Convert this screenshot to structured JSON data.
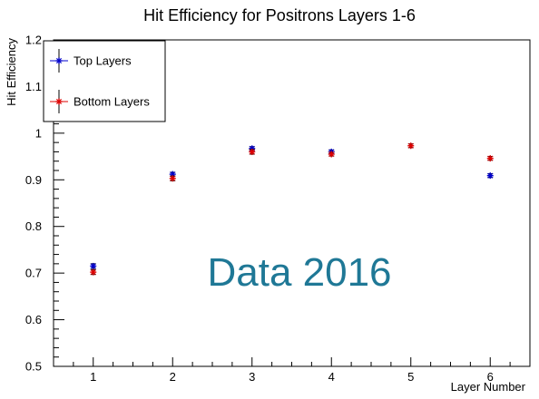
{
  "chart_data": {
    "type": "scatter",
    "title": "Hit Efficiency for Positrons Layers 1-6",
    "xlabel": "Layer Number",
    "ylabel": "Hit Efficiency",
    "xlim": [
      0.5,
      6.5
    ],
    "ylim": [
      0.5,
      1.2
    ],
    "x_ticks": [
      "1",
      "2",
      "3",
      "4",
      "5",
      "6"
    ],
    "y_ticks": [
      "0.5",
      "0.6",
      "0.7",
      "0.8",
      "0.9",
      "1",
      "1.1",
      "1.2"
    ],
    "grid": false,
    "legend_position": "top-left",
    "annotation": "Data 2016",
    "annotation_color": "#1f7896",
    "series": [
      {
        "name": "Top Layers",
        "color": "#0000cc",
        "marker": "star",
        "x": [
          1,
          2,
          3,
          4,
          6
        ],
        "y": [
          0.715,
          0.912,
          0.967,
          0.96,
          0.909
        ],
        "yerr": [
          0.005,
          0.004,
          0.004,
          0.004,
          0.004
        ]
      },
      {
        "name": "Bottom Layers",
        "color": "#dd0000",
        "marker": "star",
        "x": [
          1,
          2,
          3,
          4,
          5,
          6
        ],
        "y": [
          0.702,
          0.903,
          0.96,
          0.955,
          0.973,
          0.946
        ],
        "yerr": [
          0.005,
          0.005,
          0.005,
          0.004,
          0.004,
          0.004
        ]
      }
    ]
  }
}
